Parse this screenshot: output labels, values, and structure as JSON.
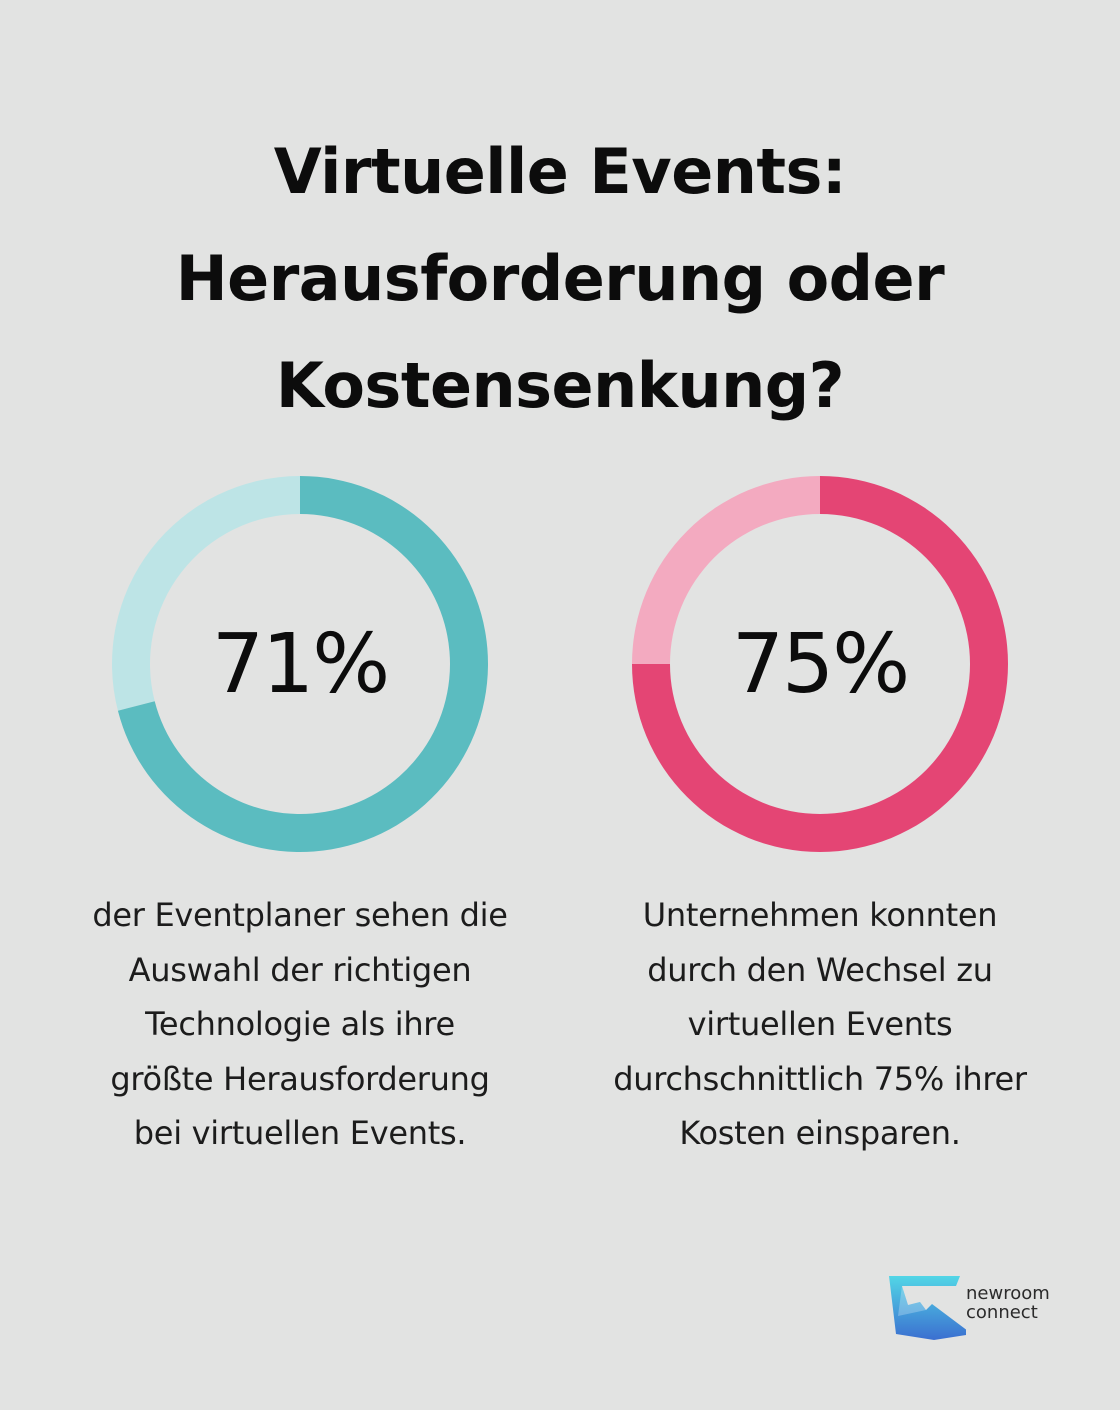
{
  "title_lines": [
    "Virtuelle Events:",
    "Herausforderung oder",
    "Kostensenkung?"
  ],
  "chart_data": [
    {
      "type": "pie",
      "variant": "donut",
      "value": 71,
      "total": 100,
      "label": "71%",
      "caption_lines": [
        "der Eventplaner sehen die",
        "Auswahl der richtigen",
        "Technologie als ihre",
        "größte Herausforderung",
        "bei virtuellen Events."
      ],
      "colors": {
        "value": "#5bbcc0",
        "rest": "#bde4e6"
      }
    },
    {
      "type": "pie",
      "variant": "donut",
      "value": 75,
      "total": 100,
      "label": "75%",
      "caption_lines": [
        "Unternehmen konnten",
        "durch den Wechsel zu",
        "virtuellen Events",
        "durchschnittlich 75% ihrer",
        "Kosten einsparen."
      ],
      "colors": {
        "value": "#e44574",
        "rest": "#f3aac0"
      }
    }
  ],
  "logo": {
    "lines": [
      "newroom",
      "connect"
    ],
    "colors": {
      "top": "#52d6e6",
      "bottom": "#3b6fd0"
    }
  },
  "colors": {
    "background": "#e2e3e2"
  }
}
